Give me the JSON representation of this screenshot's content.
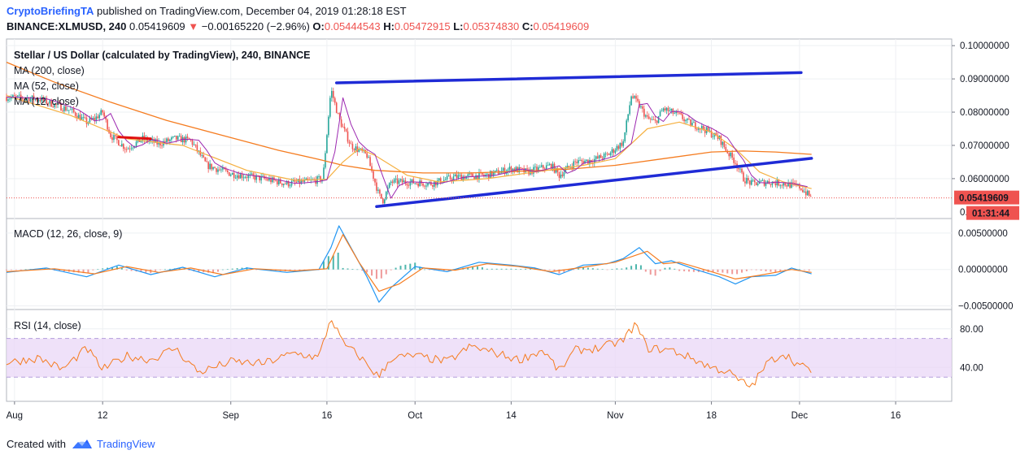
{
  "header": {
    "author": "CryptoBriefingTA",
    "published_text": "published on TradingView.com, December 04, 2019 01:28:18 EST",
    "symbol": "BINANCE:XLMUSD, 240",
    "last_price": "0.05419609",
    "change_arrow": "▼",
    "change": "−0.00165220 (−2.96%)",
    "open_label": "O:",
    "open": "0.05444543",
    "high_label": "H:",
    "high": "0.05472915",
    "low_label": "L:",
    "low": "0.05374830",
    "close_label": "C:",
    "close": "0.05419609"
  },
  "footer": {
    "created_with": "Created with",
    "brand": "TradingView"
  },
  "colors": {
    "up": "#26a69a",
    "down": "#ef5350",
    "ma200": "#f57c20",
    "ma52": "#f5b041",
    "ma_short": "#9c27b0",
    "trendline": "#1f2bd6",
    "macd": "#2196f3",
    "signal": "#f57c20",
    "rsi": "#f57c20",
    "rsi_band": "#e9d7f7"
  },
  "chart_data": [
    {
      "type": "candlestick",
      "title": "Stellar / US Dollar (calculated by TradingView), 240, BINANCE",
      "indicators": [
        "MA (200, close)",
        "MA (52, close)",
        "MA (12, close)"
      ],
      "ylim": [
        0.048,
        0.102
      ],
      "y_ticks": [
        "0.10000000",
        "0.09000000",
        "0.08000000",
        "0.07000000",
        "0.06000000"
      ],
      "last_price_label": "0.05419609",
      "countdown_label": "01:31:44",
      "x_ticks": [
        "Aug",
        "12",
        "Sep",
        "16",
        "Oct",
        "14",
        "Nov",
        "18",
        "Dec",
        "16"
      ],
      "price_path": [
        [
          0,
          0.0845
        ],
        [
          4,
          0.084
        ],
        [
          8,
          0.0805
        ],
        [
          10,
          0.077
        ],
        [
          11,
          0.078
        ],
        [
          12,
          0.08
        ],
        [
          13,
          0.073
        ],
        [
          15,
          0.069
        ],
        [
          17,
          0.072
        ],
        [
          19,
          0.0705
        ],
        [
          21,
          0.072
        ],
        [
          23,
          0.0715
        ],
        [
          25,
          0.064
        ],
        [
          28,
          0.0615
        ],
        [
          32,
          0.06
        ],
        [
          35,
          0.0585
        ],
        [
          38,
          0.0592
        ],
        [
          39.5,
          0.06
        ],
        [
          40.5,
          0.087
        ],
        [
          41.5,
          0.078
        ],
        [
          43,
          0.07
        ],
        [
          45,
          0.067
        ],
        [
          46.5,
          0.055
        ],
        [
          47,
          0.0535
        ],
        [
          48,
          0.059
        ],
        [
          50,
          0.059
        ],
        [
          53,
          0.0585
        ],
        [
          56,
          0.0605
        ],
        [
          60,
          0.061
        ],
        [
          63,
          0.063
        ],
        [
          65,
          0.062
        ],
        [
          68,
          0.064
        ],
        [
          69,
          0.061
        ],
        [
          71,
          0.065
        ],
        [
          73,
          0.0655
        ],
        [
          75,
          0.067
        ],
        [
          76,
          0.069
        ],
        [
          77,
          0.071
        ],
        [
          78,
          0.085
        ],
        [
          79,
          0.082
        ],
        [
          80,
          0.078
        ],
        [
          81,
          0.077
        ],
        [
          82,
          0.081
        ],
        [
          84,
          0.079
        ],
        [
          85,
          0.077
        ],
        [
          87,
          0.075
        ],
        [
          89,
          0.072
        ],
        [
          90,
          0.068
        ],
        [
          91,
          0.065
        ],
        [
          92,
          0.06
        ],
        [
          93,
          0.0585
        ],
        [
          95,
          0.059
        ],
        [
          97,
          0.0585
        ],
        [
          99,
          0.0575
        ],
        [
          100.5,
          0.0542
        ]
      ],
      "ma200_path": [
        [
          0,
          0.095
        ],
        [
          6,
          0.089
        ],
        [
          13,
          0.083
        ],
        [
          20,
          0.0775
        ],
        [
          27,
          0.073
        ],
        [
          34,
          0.0685
        ],
        [
          39,
          0.0658
        ],
        [
          42,
          0.064
        ],
        [
          46,
          0.0625
        ],
        [
          52,
          0.0617
        ],
        [
          58,
          0.0617
        ],
        [
          64,
          0.0622
        ],
        [
          70,
          0.0628
        ],
        [
          76,
          0.064
        ],
        [
          82,
          0.066
        ],
        [
          88,
          0.068
        ],
        [
          92,
          0.0683
        ],
        [
          96,
          0.068
        ],
        [
          100.5,
          0.0673
        ]
      ],
      "ma52_path": [
        [
          0,
          0.085
        ],
        [
          8,
          0.079
        ],
        [
          15,
          0.072
        ],
        [
          22,
          0.07
        ],
        [
          30,
          0.0625
        ],
        [
          36,
          0.0595
        ],
        [
          40,
          0.0598
        ],
        [
          42,
          0.065
        ],
        [
          44,
          0.069
        ],
        [
          46,
          0.067
        ],
        [
          48,
          0.064
        ],
        [
          50,
          0.061
        ],
        [
          54,
          0.059
        ],
        [
          60,
          0.06
        ],
        [
          66,
          0.062
        ],
        [
          72,
          0.064
        ],
        [
          76,
          0.066
        ],
        [
          80,
          0.075
        ],
        [
          84,
          0.077
        ],
        [
          88,
          0.074
        ],
        [
          91,
          0.069
        ],
        [
          94,
          0.062
        ],
        [
          97,
          0.059
        ],
        [
          100.5,
          0.057
        ]
      ],
      "trendlines": [
        {
          "from": [
            41.2,
            0.0888
          ],
          "to": [
            99.2,
            0.0919
          ]
        },
        {
          "from": [
            46.2,
            0.0516
          ],
          "to": [
            100.5,
            0.0661
          ]
        },
        {
          "from": [
            14,
            0.0725
          ],
          "to": [
            18,
            0.072
          ]
        }
      ]
    },
    {
      "type": "line",
      "title": "MACD (12, 26, close, 9)",
      "ylim": [
        -0.0055,
        0.007
      ],
      "y_ticks": [
        "0.00500000",
        "0.00000000",
        "−0.00500000"
      ],
      "series": [
        {
          "name": "MACD",
          "values_path": [
            [
              0,
              -0.0004
            ],
            [
              5,
              0.0002
            ],
            [
              10,
              -0.001
            ],
            [
              14,
              0.0006
            ],
            [
              18,
              -0.0007
            ],
            [
              22,
              0.0003
            ],
            [
              26,
              -0.001
            ],
            [
              30,
              0.0002
            ],
            [
              35,
              -0.0004
            ],
            [
              39,
              0.0
            ],
            [
              40.5,
              0.003
            ],
            [
              41.5,
              0.006
            ],
            [
              43,
              0.003
            ],
            [
              45,
              -0.001
            ],
            [
              46.5,
              -0.0045
            ],
            [
              48,
              -0.0025
            ],
            [
              51,
              0.0004
            ],
            [
              55,
              -0.0003
            ],
            [
              59,
              0.001
            ],
            [
              63,
              0.0006
            ],
            [
              66,
              0.0002
            ],
            [
              69,
              -0.0007
            ],
            [
              72,
              0.0006
            ],
            [
              75,
              0.0008
            ],
            [
              77,
              0.0015
            ],
            [
              79,
              0.003
            ],
            [
              81,
              0.0008
            ],
            [
              83,
              0.0012
            ],
            [
              86,
              0.0
            ],
            [
              89,
              -0.001
            ],
            [
              91,
              -0.002
            ],
            [
              93,
              -0.001
            ],
            [
              96,
              -0.0008
            ],
            [
              98,
              0.0002
            ],
            [
              100.5,
              -0.0006
            ]
          ]
        },
        {
          "name": "Signal",
          "values_path": [
            [
              0,
              -0.0003
            ],
            [
              6,
              0.0001
            ],
            [
              11,
              -0.0006
            ],
            [
              15,
              0.0004
            ],
            [
              19,
              -0.0004
            ],
            [
              23,
              0.0002
            ],
            [
              27,
              -0.0007
            ],
            [
              31,
              0.0001
            ],
            [
              36,
              -0.0002
            ],
            [
              40,
              0.0001
            ],
            [
              42,
              0.0048
            ],
            [
              44,
              0.001
            ],
            [
              46.5,
              -0.003
            ],
            [
              49,
              -0.002
            ],
            [
              52,
              0.0002
            ],
            [
              56,
              -0.0001
            ],
            [
              60,
              0.0008
            ],
            [
              64,
              0.0004
            ],
            [
              68,
              -0.0003
            ],
            [
              72,
              0.0003
            ],
            [
              76,
              0.001
            ],
            [
              80,
              0.0025
            ],
            [
              82,
              0.0008
            ],
            [
              84,
              0.001
            ],
            [
              88,
              -0.0003
            ],
            [
              91,
              -0.0013
            ],
            [
              94,
              -0.0008
            ],
            [
              98,
              0.0
            ],
            [
              100.5,
              -0.0004
            ]
          ]
        }
      ]
    },
    {
      "type": "line",
      "title": "RSI (14, close)",
      "ylim": [
        5,
        100
      ],
      "band": [
        30,
        70
      ],
      "y_ticks": [
        "80.00",
        "40.00"
      ],
      "values_path": [
        [
          0,
          45
        ],
        [
          4,
          50
        ],
        [
          7,
          38
        ],
        [
          10,
          60
        ],
        [
          12,
          38
        ],
        [
          15,
          52
        ],
        [
          18,
          48
        ],
        [
          21,
          60
        ],
        [
          24,
          35
        ],
        [
          28,
          46
        ],
        [
          32,
          44
        ],
        [
          36,
          55
        ],
        [
          39,
          50
        ],
        [
          40.5,
          92
        ],
        [
          42,
          65
        ],
        [
          44,
          52
        ],
        [
          46.5,
          30
        ],
        [
          48,
          50
        ],
        [
          51,
          52
        ],
        [
          55,
          46
        ],
        [
          58,
          62
        ],
        [
          61,
          55
        ],
        [
          64,
          48
        ],
        [
          67,
          58
        ],
        [
          69,
          36
        ],
        [
          71,
          58
        ],
        [
          74,
          60
        ],
        [
          77,
          68
        ],
        [
          78.5,
          85
        ],
        [
          80,
          60
        ],
        [
          83,
          58
        ],
        [
          86,
          48
        ],
        [
          88,
          40
        ],
        [
          90,
          36
        ],
        [
          91.5,
          26
        ],
        [
          93,
          20
        ],
        [
          95,
          45
        ],
        [
          97,
          55
        ],
        [
          99,
          42
        ],
        [
          100.5,
          37
        ]
      ]
    }
  ]
}
